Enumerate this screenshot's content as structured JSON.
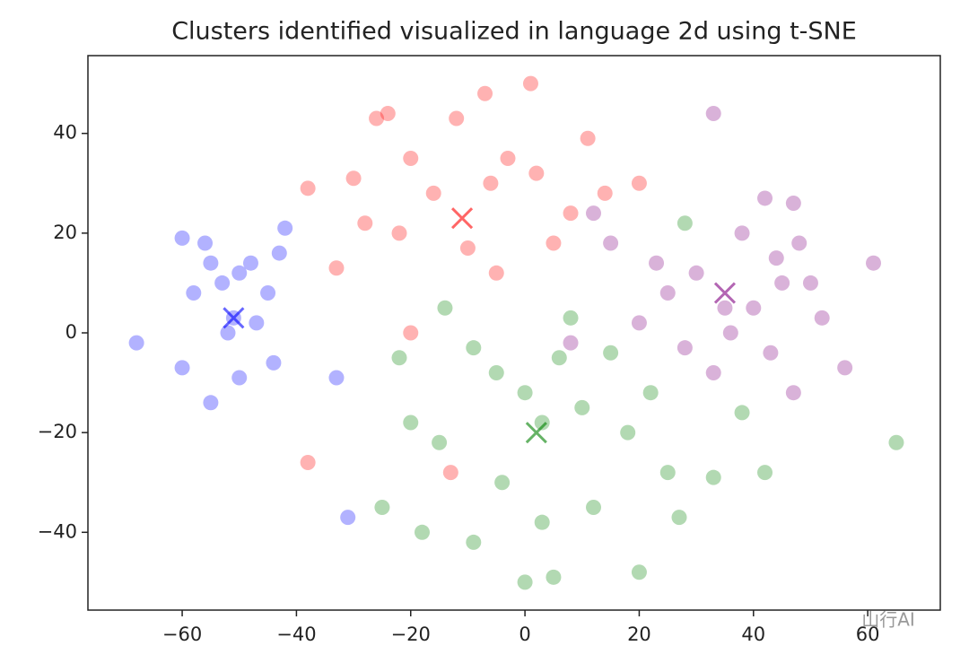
{
  "chart_data": {
    "type": "scatter",
    "title": "Clusters identified visualized in language 2d using t-SNE",
    "xlim": [
      -76.5,
      72.7
    ],
    "ylim": [
      -55.6,
      55.6
    ],
    "xticks": [
      {
        "value": -60,
        "label": "−60"
      },
      {
        "value": -40,
        "label": "−40"
      },
      {
        "value": -20,
        "label": "−20"
      },
      0,
      20,
      40,
      60
    ],
    "yticks": [
      {
        "value": -40,
        "label": "−40"
      },
      {
        "value": -20,
        "label": "−20"
      },
      0,
      20,
      40
    ],
    "alpha": 0.3,
    "series": [
      {
        "color": "blue",
        "marker": "o",
        "x": [
          -68,
          -60,
          -60,
          -56,
          -55,
          -53,
          -51,
          -50,
          -50,
          -48,
          -47,
          -45,
          -43,
          -42,
          -44,
          -58,
          -55,
          -52,
          -33,
          -31
        ],
        "y": [
          -2,
          19,
          -7,
          18,
          14,
          10,
          3,
          12,
          -9,
          14,
          2,
          8,
          16,
          21,
          -6,
          8,
          -14,
          0,
          -9,
          -37
        ]
      },
      {
        "color": "red",
        "marker": "o",
        "x": [
          -26,
          -24,
          -20,
          -30,
          -38,
          -12,
          -7,
          1,
          11,
          -3,
          2,
          -6,
          -16,
          -22,
          -28,
          -33,
          -10,
          -5,
          5,
          8,
          14,
          20,
          -20,
          -38,
          -13
        ],
        "y": [
          43,
          44,
          35,
          31,
          29,
          43,
          48,
          50,
          39,
          35,
          32,
          30,
          28,
          20,
          22,
          13,
          17,
          12,
          18,
          24,
          28,
          30,
          0,
          -26,
          -28
        ]
      },
      {
        "color": "green",
        "marker": "o",
        "x": [
          -9,
          -5,
          0,
          3,
          6,
          10,
          -15,
          -20,
          -25,
          -18,
          -9,
          0,
          5,
          20,
          27,
          33,
          38,
          42,
          65,
          -22,
          -14,
          8,
          15,
          22,
          25,
          -4,
          3,
          12,
          28,
          18
        ],
        "y": [
          -3,
          -8,
          -12,
          -18,
          -5,
          -15,
          -22,
          -18,
          -35,
          -40,
          -42,
          -50,
          -49,
          -48,
          -37,
          -29,
          -16,
          -28,
          -22,
          -5,
          5,
          3,
          -4,
          -12,
          -28,
          -30,
          -38,
          -35,
          22,
          -20
        ]
      },
      {
        "color": "purple",
        "marker": "o",
        "x": [
          33,
          61,
          47,
          42,
          38,
          30,
          25,
          35,
          40,
          45,
          50,
          52,
          56,
          47,
          43,
          33,
          28,
          20,
          23,
          48,
          12,
          8,
          15,
          36,
          44
        ],
        "y": [
          44,
          14,
          26,
          27,
          20,
          12,
          8,
          5,
          5,
          10,
          10,
          3,
          -7,
          -12,
          -4,
          -8,
          -3,
          2,
          14,
          18,
          24,
          -2,
          18,
          0,
          15
        ]
      },
      {
        "color": "red",
        "marker": "x",
        "x": [
          -11
        ],
        "y": [
          23
        ]
      },
      {
        "color": "blue",
        "marker": "x",
        "x": [
          -51
        ],
        "y": [
          3
        ]
      },
      {
        "color": "green",
        "marker": "x",
        "x": [
          2
        ],
        "y": [
          -20
        ]
      },
      {
        "color": "purple",
        "marker": "x",
        "x": [
          35
        ],
        "y": [
          8
        ]
      }
    ]
  },
  "watermark": "山行AI"
}
